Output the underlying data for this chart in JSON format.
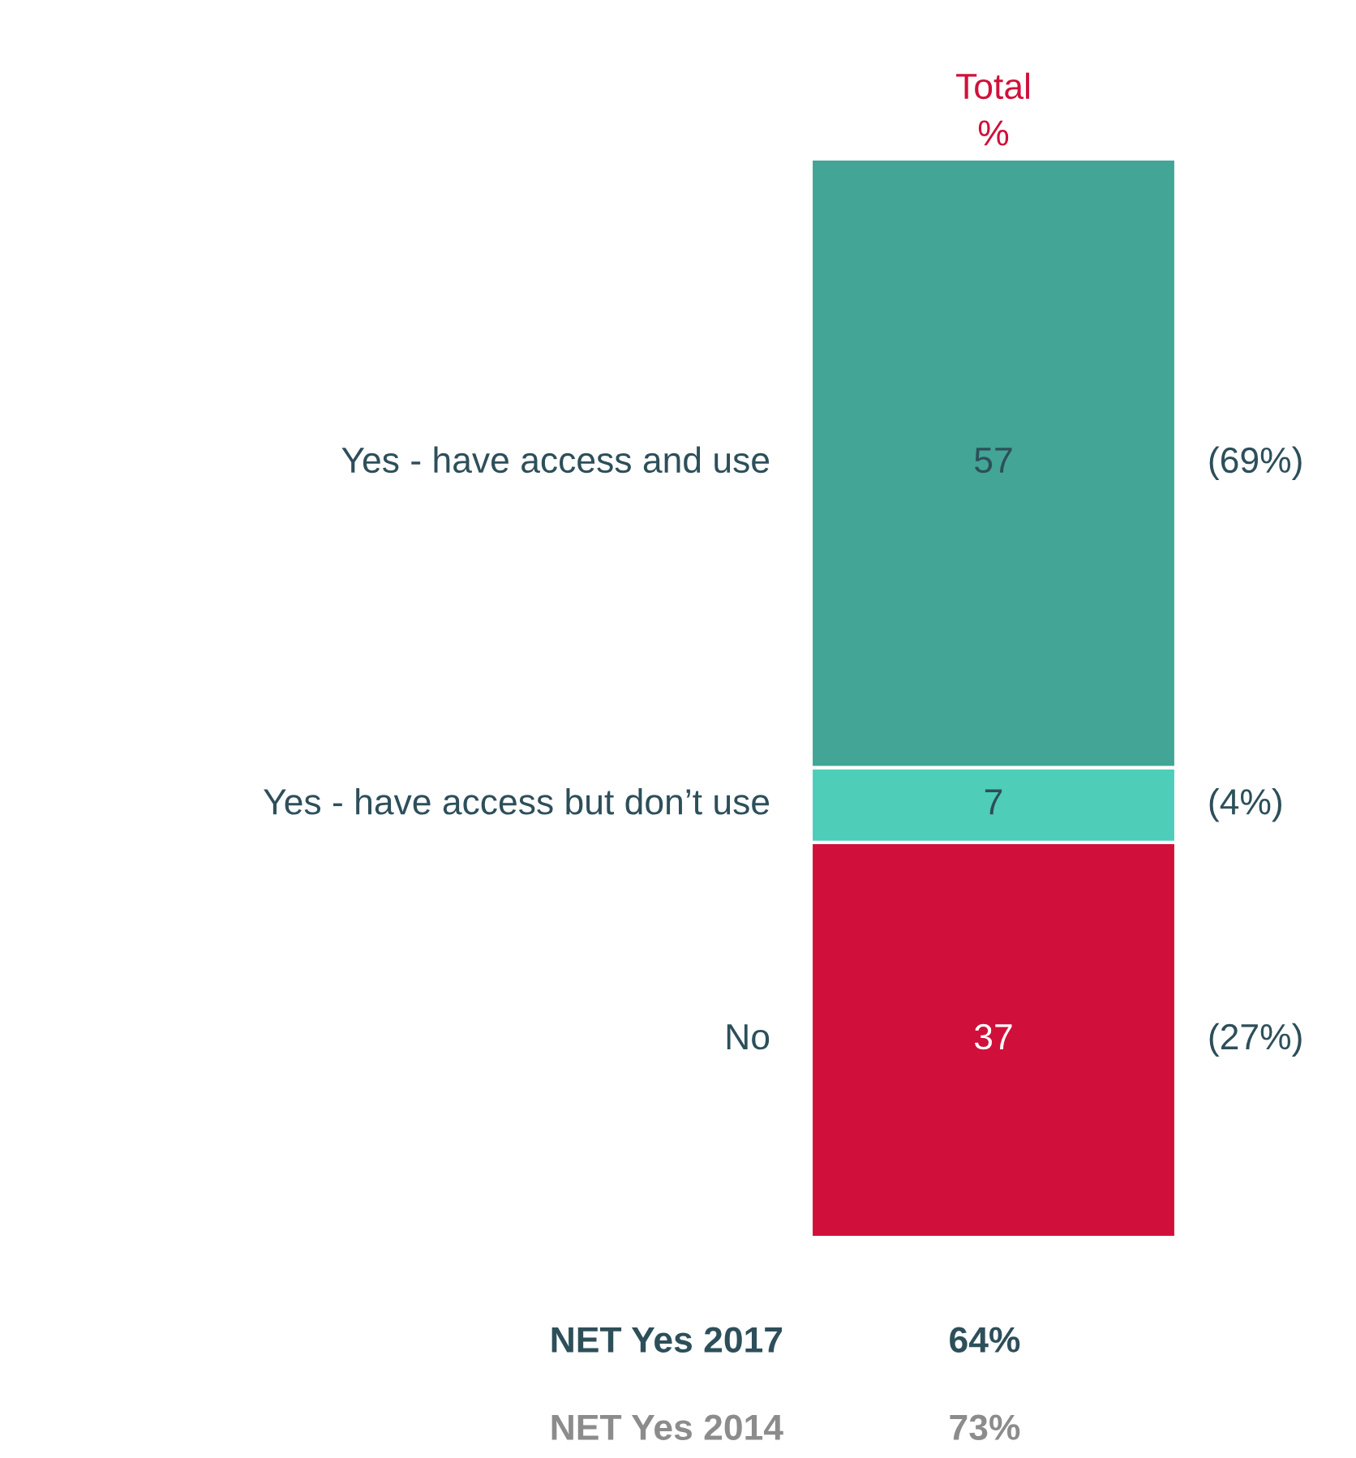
{
  "chart_data": {
    "type": "bar",
    "title": "Total\n%",
    "categories": [
      null
    ],
    "stacked": true,
    "data_labels": true,
    "legend": false,
    "tick_labels": false,
    "series": [
      {
        "name": "No",
        "color": "#d0103a",
        "values": [
          37
        ]
      },
      {
        "name": "Yes - have access but don’t use",
        "color": "#4ecdb9",
        "values": [
          7
        ]
      },
      {
        "name": "Yes - have access and use",
        "color": "#42a595",
        "values": [
          57
        ]
      }
    ],
    "annotations": [
      "(27%)",
      "(4%)",
      "(69%)",
      "NET Yes 2017",
      "64%",
      "NET Yes 2014",
      "73%"
    ]
  }
}
